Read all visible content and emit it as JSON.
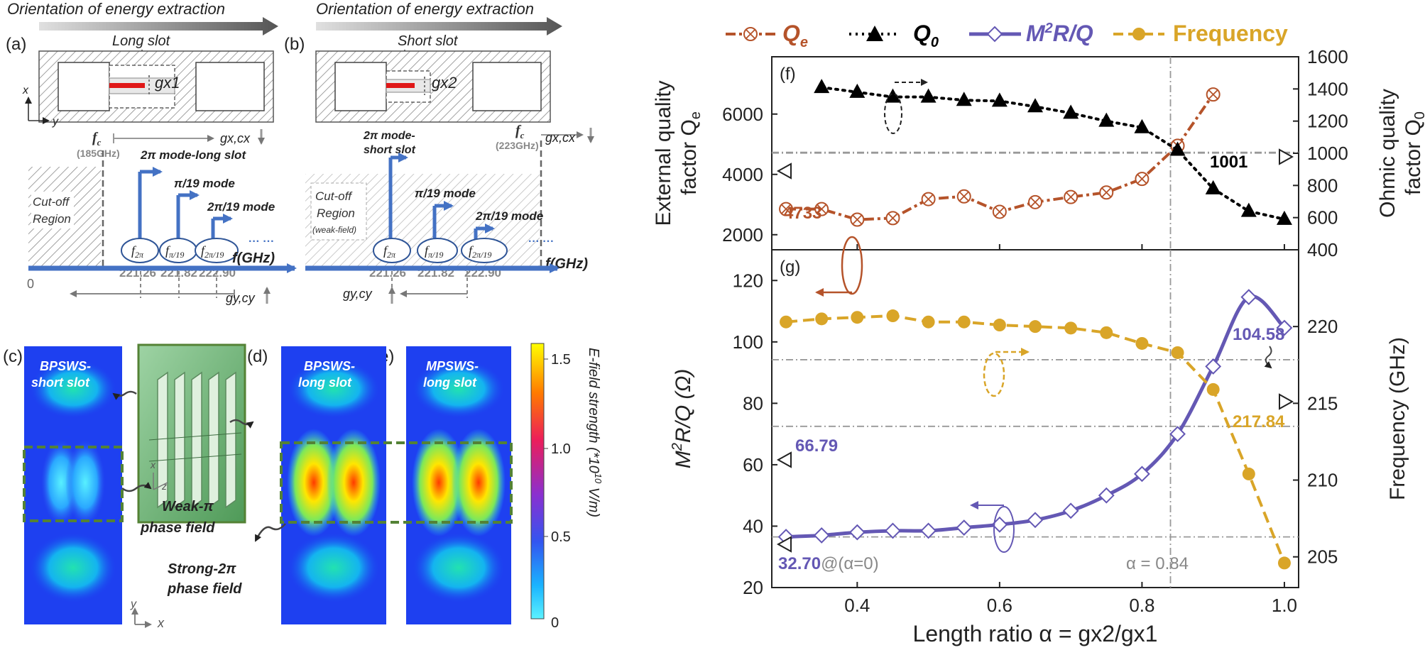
{
  "panel_a": {
    "label": "(a)",
    "orientation_title": "Orientation of energy extraction",
    "slot_label": "Long slot",
    "gap_label": "gx1",
    "axis_x": "x",
    "axis_y": "y",
    "fc_label": "f",
    "fc_sub": "c",
    "fc_value": "(185GHz)",
    "gx_cx": "gx,cx",
    "gy_cy": "gy,cy",
    "zero": "0",
    "cutoff_line1": "Cut-off",
    "cutoff_line2": "Region",
    "mode_2pi": "2π mode-long slot",
    "mode_pi19": "π/19 mode",
    "mode_2pi19": "2π/19 mode",
    "dots": "··· ···",
    "f_axis": "f(GHz)",
    "freqs": [
      "221.26",
      "221.82",
      "222.90"
    ]
  },
  "panel_b": {
    "label": "(b)",
    "orientation_title": "Orientation of energy extraction",
    "slot_label": "Short slot",
    "gap_label": "gx2",
    "fc_label": "f",
    "fc_sub": "c",
    "fc_value": "(223GHz)",
    "gx_cx": "gx,cx",
    "gy_cy": "gy,cy",
    "cutoff_line1": "Cut-off",
    "cutoff_line2": "Region",
    "cutoff_line3": "(weak-field)",
    "mode_2pi_line1": "2π mode-",
    "mode_2pi_line2": "short slot",
    "mode_pi19": "π/19 mode",
    "mode_2pi19": "2π/19 mode",
    "dots": "··· ···",
    "f_axis": "f(GHz)",
    "freqs": [
      "221.26",
      "221.82",
      "222.90"
    ]
  },
  "mode_subs": [
    "2π",
    "π/19",
    "2π/19"
  ],
  "field_panels": {
    "c_label": "(c)",
    "d_label": "(d)",
    "e_label": "(e)",
    "c_title_1": "BPSWS-",
    "c_title_2": "short slot",
    "d_title_1": "BPSWS-",
    "d_title_2": "long slot",
    "e_title_1": "MPSWS-",
    "e_title_2": "long slot",
    "weak_1": "Weak-π",
    "weak_2": "phase field",
    "strong_1": "Strong-2π",
    "strong_2": "phase field",
    "axis_y": "y",
    "axis_x": "x",
    "inset_axis_x": "x",
    "inset_axis_z": "z",
    "colorbar_title": "E-field strength (*10",
    "colorbar_exp": "10",
    "colorbar_unit": " V/m)",
    "colorbar_ticks": [
      "1.5",
      "1.0",
      "0.5",
      "0"
    ],
    "colorbar_colors": [
      "#ffff00",
      "#ff6a00",
      "#e0186c",
      "#7a2fd6",
      "#2a55f0",
      "#19b6ff",
      "#55f0ff"
    ]
  },
  "chart_data": [
    {
      "id": "f",
      "panel_label": "(f)",
      "type": "line",
      "legend": [
        "Q",
        "Q",
        "M",
        "Frequency"
      ],
      "legend_subs": [
        "e",
        "0",
        "",
        ""
      ],
      "legend_m2rq_tail": "R/Q",
      "legend_m2rq_sup": "2",
      "colors": {
        "qe": "#b5532a",
        "q0": "#000000",
        "m2rq": "#6458b4",
        "freq": "#d9a528"
      },
      "x": [
        0.3,
        0.35,
        0.4,
        0.45,
        0.5,
        0.55,
        0.6,
        0.65,
        0.7,
        0.75,
        0.8,
        0.85,
        0.9,
        0.95,
        1.0
      ],
      "series": [
        {
          "name": "Qe",
          "axis": "left",
          "x": [
            0.3,
            0.35,
            0.4,
            0.45,
            0.5,
            0.55,
            0.6,
            0.65,
            0.7,
            0.75,
            0.8,
            0.85,
            0.9
          ],
          "values": [
            2850,
            2850,
            2500,
            2550,
            3180,
            3270,
            2760,
            3080,
            3250,
            3400,
            3850,
            4950,
            6650
          ]
        },
        {
          "name": "Q0",
          "axis": "right",
          "x": [
            0.35,
            0.4,
            0.45,
            0.5,
            0.55,
            0.6,
            0.65,
            0.7,
            0.75,
            0.8,
            0.85,
            0.9,
            0.95,
            1.0
          ],
          "values": [
            1410,
            1380,
            1350,
            1350,
            1330,
            1325,
            1290,
            1250,
            1200,
            1160,
            1020,
            780,
            640,
            590
          ]
        }
      ],
      "ylabel_left_1": "External quality",
      "ylabel_left_2": "factor Q",
      "ylabel_left_sub": "e",
      "ylabel_right_1": "Ohmic quality",
      "ylabel_right_2": "factor Q",
      "ylabel_right_sub": "0",
      "xlim": [
        0.28,
        1.02
      ],
      "ylim_left": [
        1500,
        7900
      ],
      "ylim_right": [
        400,
        1600
      ],
      "yticks_left": [
        2000,
        4000,
        6000
      ],
      "yticks_right": [
        400,
        600,
        800,
        1000,
        1200,
        1400,
        1600
      ],
      "ref_qe": 4733,
      "ref_q0": 1001,
      "alpha_ref": 0.84,
      "annot_qe": "4733",
      "annot_q0": "1001"
    },
    {
      "id": "g",
      "panel_label": "(g)",
      "type": "line",
      "x": [
        0.3,
        0.35,
        0.4,
        0.45,
        0.5,
        0.55,
        0.6,
        0.65,
        0.7,
        0.75,
        0.8,
        0.85,
        0.9,
        0.95,
        1.0
      ],
      "series": [
        {
          "name": "M2R/Q",
          "axis": "left",
          "x": [
            0.3,
            0.35,
            0.4,
            0.45,
            0.5,
            0.55,
            0.6,
            0.65,
            0.7,
            0.75,
            0.8,
            0.85,
            0.9,
            0.95,
            1.0
          ],
          "values": [
            36.5,
            37,
            38,
            38.5,
            38.5,
            39.5,
            40.5,
            42,
            45,
            50,
            57,
            70,
            92,
            114.6,
            104.58
          ]
        },
        {
          "name": "Frequency",
          "axis": "right",
          "x": [
            0.3,
            0.35,
            0.4,
            0.45,
            0.5,
            0.55,
            0.6,
            0.65,
            0.7,
            0.75,
            0.8,
            0.85,
            0.9,
            0.95,
            1.0
          ],
          "values": [
            220.3,
            220.5,
            220.6,
            220.7,
            220.3,
            220.3,
            220.1,
            220.0,
            219.9,
            219.6,
            218.9,
            218.3,
            215.9,
            210.4,
            204.6
          ]
        }
      ],
      "ylabel_left_pre": "M",
      "ylabel_left_sup": "2",
      "ylabel_left_post": "R/Q (Ω)",
      "ylabel_right": "Frequency (GHz)",
      "xlabel": "Length ratio α = gx2/gx1",
      "xlim": [
        0.28,
        1.02
      ],
      "ylim_left": [
        20,
        130
      ],
      "ylim_right": [
        203,
        225
      ],
      "yticks_left": [
        20,
        40,
        60,
        80,
        100,
        120
      ],
      "yticks_right": [
        205,
        210,
        215,
        220
      ],
      "xticks": [
        0.4,
        0.6,
        0.8,
        1.0
      ],
      "xtick_labels": [
        "0.4",
        "0.6",
        "0.8",
        "1.0"
      ],
      "ref_left": [
        36.5,
        72.5
      ],
      "ref_right": 217.84,
      "alpha_ref": 0.84,
      "annot_top": "104.58",
      "annot_freq": "217.84",
      "annot_mid": "66.79",
      "annot_low": "32.70",
      "annot_low_tail": "@(α=0)",
      "annot_alpha": "α = 0.84"
    }
  ]
}
